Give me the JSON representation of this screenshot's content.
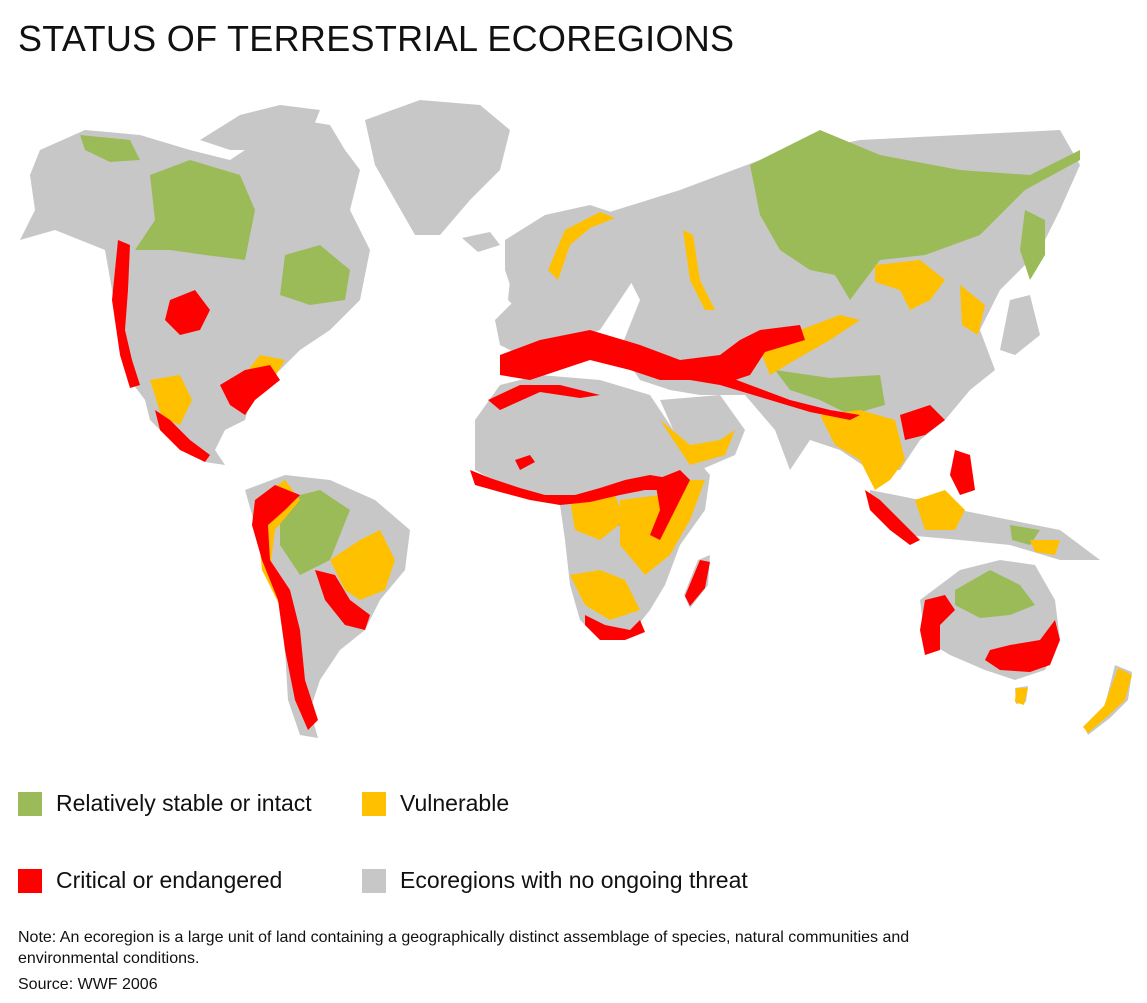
{
  "title": "STATUS OF TERRESTRIAL ECOREGIONS",
  "colors": {
    "stable": "#9bbb59",
    "vulnerable": "#ffc000",
    "critical": "#ff0000",
    "no_threat": "#c8c7c7"
  },
  "legend": {
    "stable": "Relatively stable or intact",
    "vulnerable": "Vulnerable",
    "critical": "Critical or endangered",
    "no_threat": "Ecoregions with no ongoing threat"
  },
  "note": "Note: An ecoregion is a large unit of land containing a geographically distinct assemblage of species, natural communities and environmental conditions.",
  "source": "Source: WWF 2006"
}
